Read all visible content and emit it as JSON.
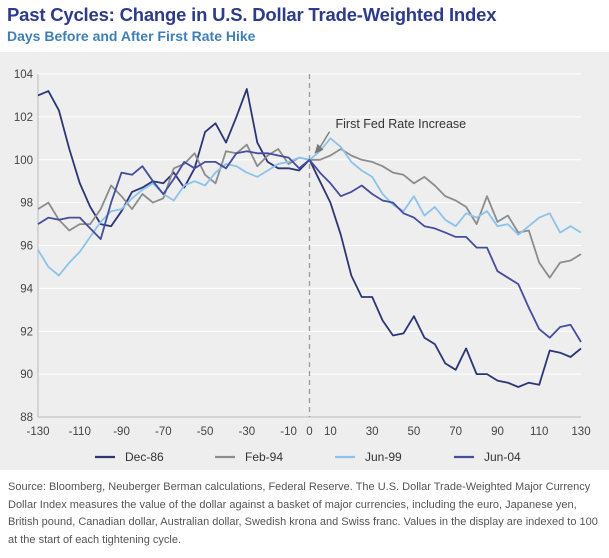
{
  "title": "Past Cycles: Change in U.S. Dollar Trade-Weighted Index",
  "subtitle": "Days Before and After First Rate Hike",
  "source": "Source: Bloomberg, Neuberger Berman calculations, Federal Reserve. The U.S. Dollar Trade-Weighted Major Currency Dollar Index measures the value of the dollar against a basket of major currencies, including the euro, Japanese yen, British pound, Canadian dollar, Australian dollar, Swedish krona and Swiss franc. Values in the display are indexed to 100 at the start of each tightening cycle.",
  "colors": {
    "title": "#2e3b8a",
    "subtitle": "#3f7fb6",
    "plot_bg": "#eeeeee",
    "vline": "#999999"
  },
  "chart_data": {
    "type": "line",
    "title": "Past Cycles: Change in U.S. Dollar Trade-Weighted Index",
    "xlabel": "",
    "ylabel": "",
    "xlim": [
      -130,
      130
    ],
    "ylim": [
      88,
      104
    ],
    "x_ticks": [
      "-130",
      "-110",
      "-90",
      "-70",
      "-50",
      "-30",
      "-10",
      "0",
      "10",
      "30",
      "50",
      "70",
      "90",
      "110",
      "130"
    ],
    "x_tick_values": [
      -130,
      -110,
      -90,
      -70,
      -50,
      -30,
      -10,
      0,
      10,
      30,
      50,
      70,
      90,
      110,
      130
    ],
    "y_ticks": [
      "88",
      "90",
      "92",
      "94",
      "96",
      "98",
      "100",
      "102",
      "104"
    ],
    "y_tick_values": [
      88,
      90,
      92,
      94,
      96,
      98,
      100,
      102,
      104
    ],
    "grid": true,
    "legend_position": "bottom",
    "annotation": {
      "text": "First Fed Rate Increase",
      "x": 0,
      "y": 100
    },
    "series": [
      {
        "name": "Dec-86",
        "color": "#2c3675",
        "x": [
          -130,
          -125,
          -120,
          -115,
          -110,
          -105,
          -100,
          -95,
          -90,
          -85,
          -80,
          -75,
          -70,
          -65,
          -60,
          -55,
          -50,
          -45,
          -40,
          -35,
          -30,
          -25,
          -20,
          -15,
          -10,
          -5,
          0,
          5,
          10,
          15,
          20,
          25,
          30,
          35,
          40,
          45,
          50,
          55,
          60,
          65,
          70,
          75,
          80,
          85,
          90,
          95,
          100,
          105,
          110,
          115,
          120,
          125,
          130
        ],
        "y": [
          103.0,
          103.2,
          102.3,
          100.5,
          98.9,
          97.8,
          97.0,
          96.9,
          97.6,
          98.5,
          98.7,
          99.0,
          98.9,
          99.4,
          98.7,
          99.6,
          101.3,
          101.7,
          100.8,
          102.0,
          103.3,
          100.8,
          99.9,
          99.6,
          99.6,
          99.5,
          100.0,
          99.0,
          98.0,
          96.5,
          94.6,
          93.6,
          93.6,
          92.5,
          91.8,
          91.9,
          92.7,
          91.7,
          91.4,
          90.5,
          90.2,
          91.2,
          90.0,
          90.0,
          89.7,
          89.6,
          89.4,
          89.6,
          89.5,
          91.1,
          91.0,
          90.8,
          91.2
        ]
      },
      {
        "name": "Feb-94",
        "color": "#8c8c8c",
        "x": [
          -130,
          -125,
          -120,
          -115,
          -110,
          -105,
          -100,
          -95,
          -90,
          -85,
          -80,
          -75,
          -70,
          -65,
          -60,
          -55,
          -50,
          -45,
          -40,
          -35,
          -30,
          -25,
          -20,
          -15,
          -10,
          -5,
          0,
          5,
          10,
          15,
          20,
          25,
          30,
          35,
          40,
          45,
          50,
          55,
          60,
          65,
          70,
          75,
          80,
          85,
          90,
          95,
          100,
          105,
          110,
          115,
          120,
          125,
          130
        ],
        "y": [
          97.7,
          98.0,
          97.2,
          96.7,
          97.0,
          97.0,
          97.7,
          98.8,
          98.3,
          97.7,
          98.4,
          98.0,
          98.2,
          99.6,
          99.8,
          100.3,
          99.3,
          98.9,
          100.4,
          100.3,
          100.7,
          99.7,
          100.2,
          100.5,
          99.8,
          100.1,
          100.0,
          100.0,
          100.2,
          100.5,
          100.2,
          100.0,
          99.9,
          99.7,
          99.4,
          99.3,
          98.9,
          99.2,
          98.8,
          98.3,
          98.1,
          97.8,
          97.0,
          98.3,
          97.1,
          97.4,
          96.6,
          96.7,
          95.2,
          94.5,
          95.2,
          95.3,
          95.6
        ]
      },
      {
        "name": "Jun-99",
        "color": "#8cc3ea",
        "x": [
          -130,
          -125,
          -120,
          -115,
          -110,
          -105,
          -100,
          -95,
          -90,
          -85,
          -80,
          -75,
          -70,
          -65,
          -60,
          -55,
          -50,
          -45,
          -40,
          -35,
          -30,
          -25,
          -20,
          -15,
          -10,
          -5,
          0,
          5,
          10,
          15,
          20,
          25,
          30,
          35,
          40,
          45,
          50,
          55,
          60,
          65,
          70,
          75,
          80,
          85,
          90,
          95,
          100,
          105,
          110,
          115,
          120,
          125,
          130
        ],
        "y": [
          95.8,
          95.0,
          94.6,
          95.2,
          95.7,
          96.4,
          97.1,
          97.6,
          97.7,
          98.2,
          98.6,
          98.9,
          98.4,
          98.1,
          98.8,
          99.0,
          98.8,
          99.4,
          99.8,
          99.7,
          99.4,
          99.2,
          99.5,
          99.8,
          99.9,
          100.1,
          100.0,
          100.4,
          101.0,
          100.6,
          99.9,
          99.5,
          99.2,
          98.4,
          97.9,
          97.6,
          98.3,
          97.4,
          97.8,
          97.2,
          96.9,
          97.5,
          97.3,
          97.6,
          96.9,
          97.0,
          96.5,
          96.9,
          97.3,
          97.5,
          96.6,
          96.9,
          96.6
        ]
      },
      {
        "name": "Jun-04",
        "color": "#454d9c",
        "x": [
          -130,
          -125,
          -120,
          -115,
          -110,
          -105,
          -100,
          -95,
          -90,
          -85,
          -80,
          -75,
          -70,
          -65,
          -60,
          -55,
          -50,
          -45,
          -40,
          -35,
          -30,
          -25,
          -20,
          -15,
          -10,
          -5,
          0,
          5,
          10,
          15,
          20,
          25,
          30,
          35,
          40,
          45,
          50,
          55,
          60,
          65,
          70,
          75,
          80,
          85,
          90,
          95,
          100,
          105,
          110,
          115,
          120,
          125,
          130
        ],
        "y": [
          97.0,
          97.3,
          97.2,
          97.3,
          97.3,
          96.8,
          96.3,
          98.0,
          99.4,
          99.3,
          99.7,
          99.0,
          98.4,
          99.1,
          99.9,
          99.6,
          99.9,
          99.9,
          99.6,
          100.3,
          100.4,
          100.3,
          100.3,
          100.2,
          100.1,
          99.6,
          100.0,
          99.4,
          98.9,
          98.3,
          98.5,
          98.8,
          98.4,
          98.1,
          98.0,
          97.5,
          97.3,
          96.9,
          96.8,
          96.6,
          96.4,
          96.4,
          95.9,
          95.9,
          94.8,
          94.5,
          94.2,
          93.1,
          92.1,
          91.7,
          92.2,
          92.3,
          91.5
        ]
      }
    ]
  }
}
